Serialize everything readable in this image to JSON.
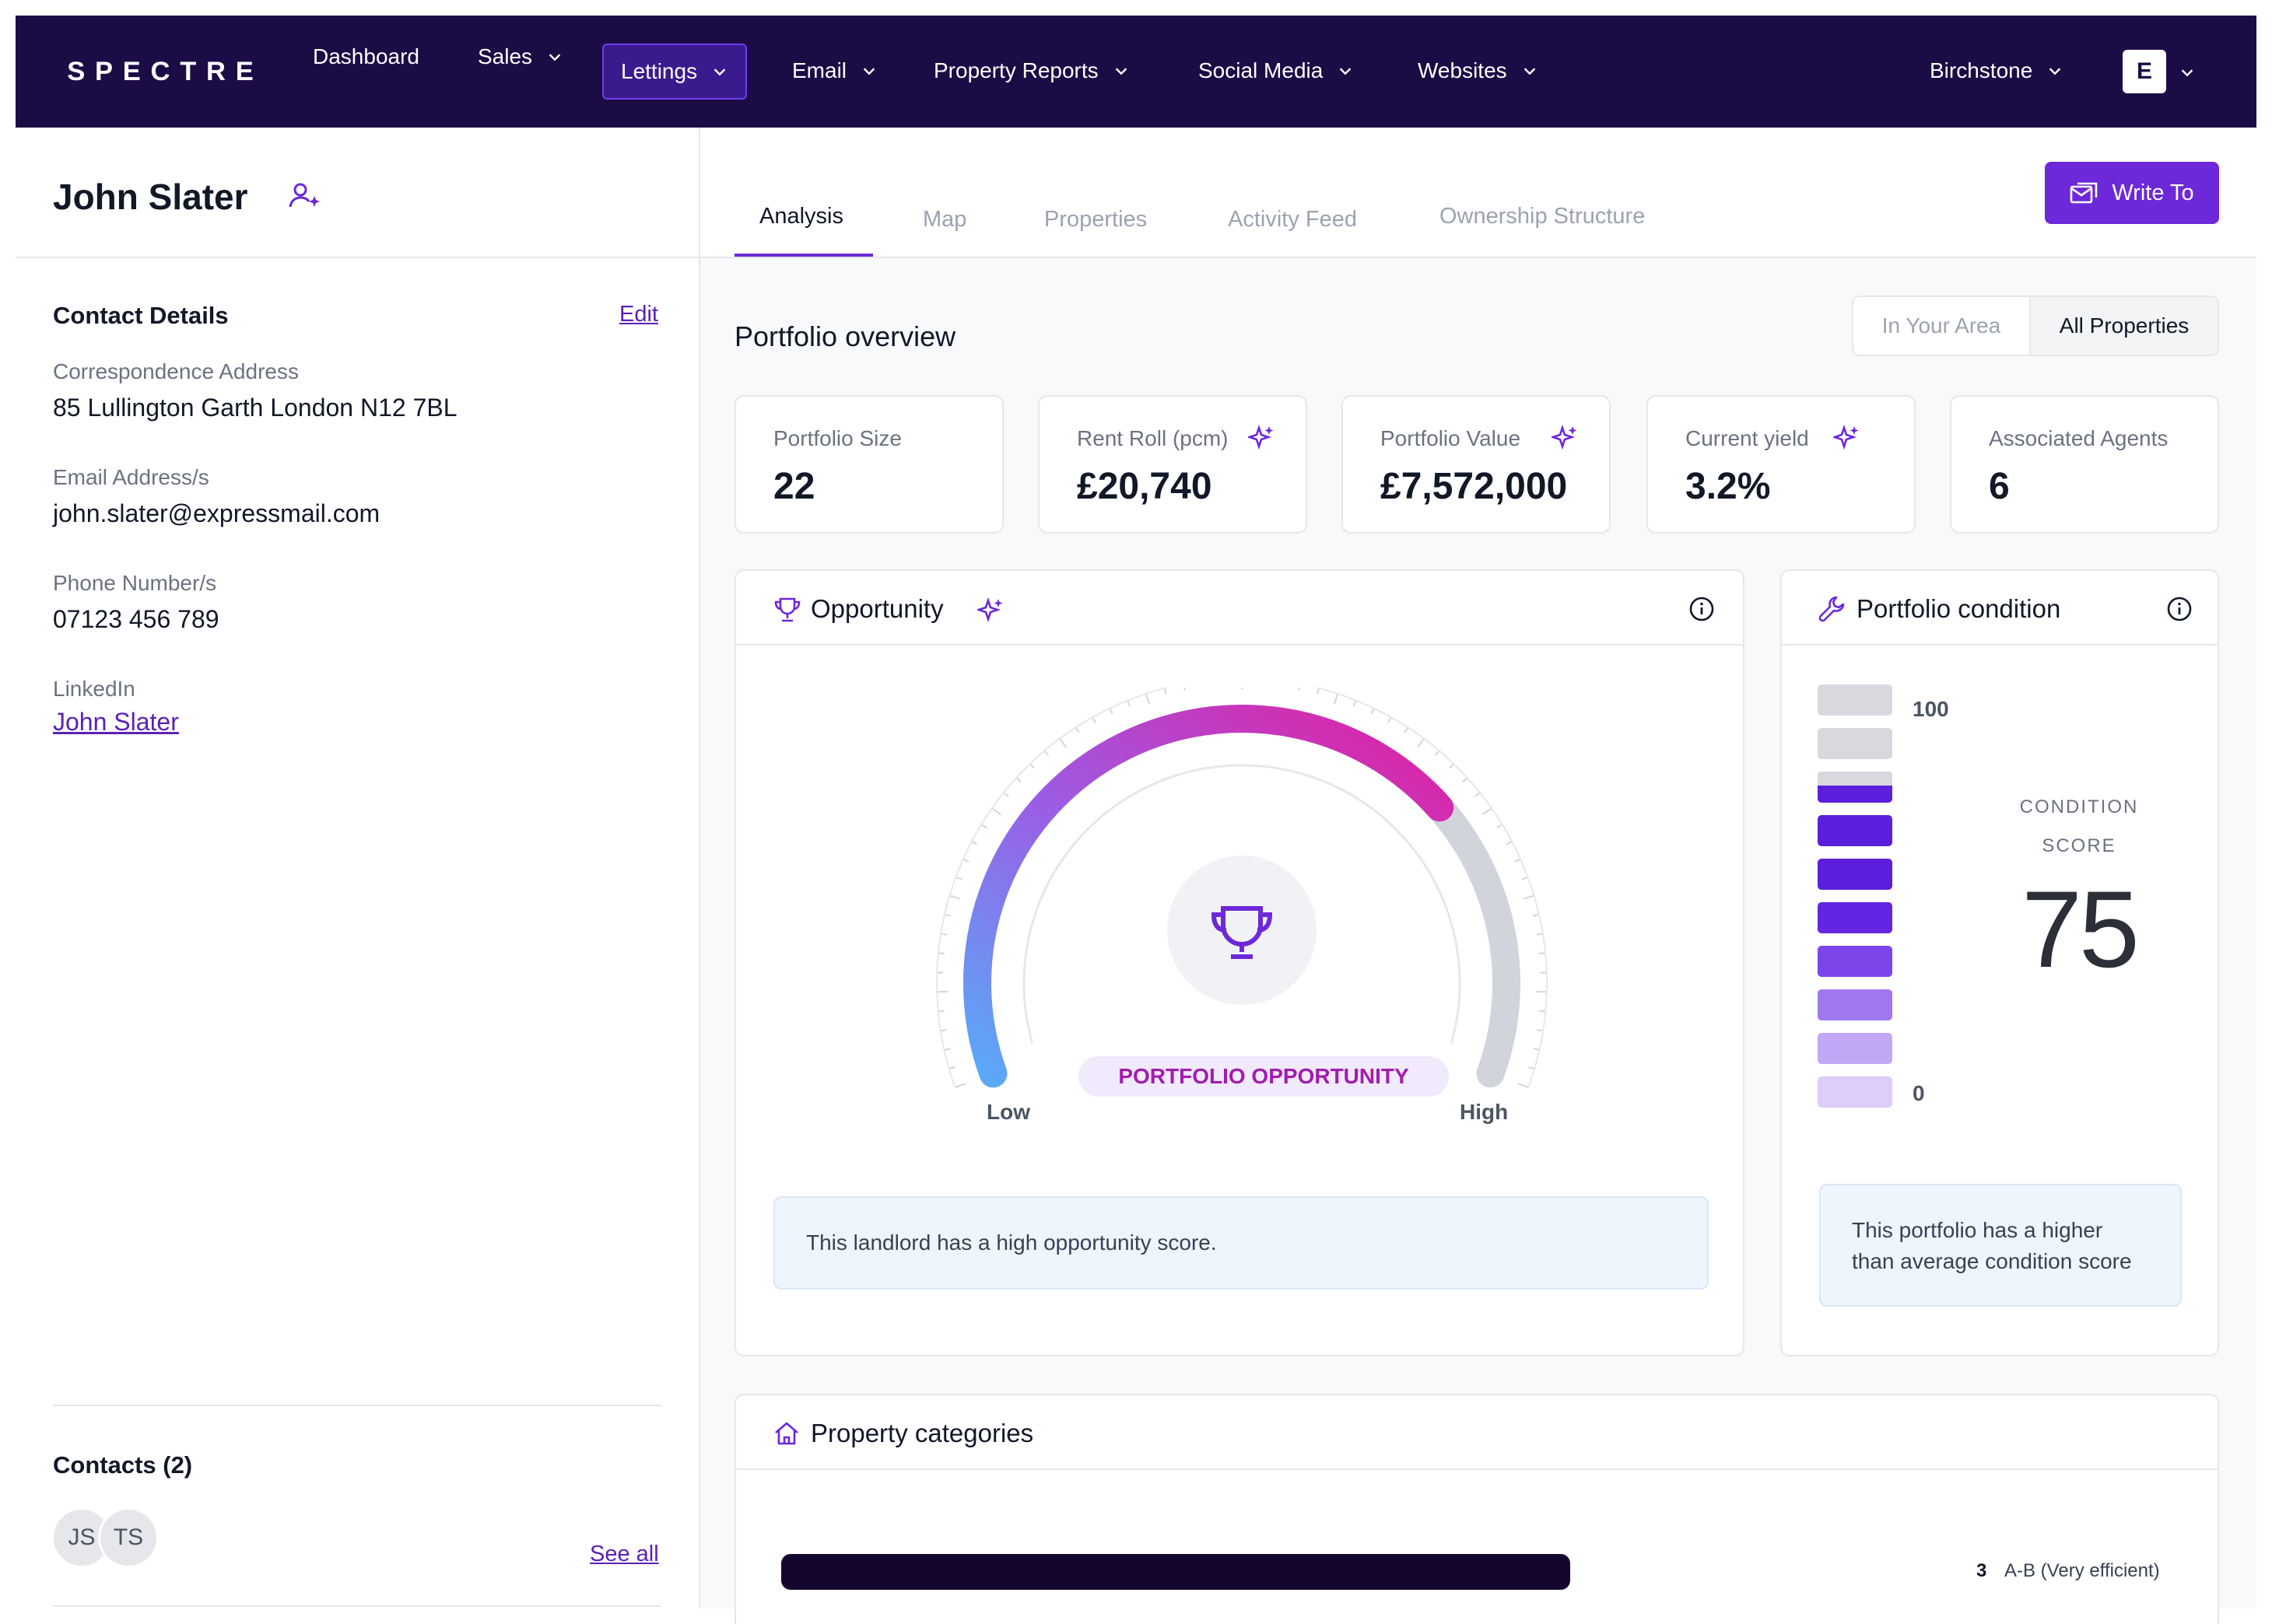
{
  "nav": {
    "logo": "SPECTRE",
    "items": [
      {
        "label": "Dashboard"
      },
      {
        "label": "Sales"
      },
      {
        "label": "Lettings"
      },
      {
        "label": "Email"
      },
      {
        "label": "Property Reports"
      },
      {
        "label": "Social Media"
      },
      {
        "label": "Websites"
      }
    ],
    "account": "Birchstone",
    "user_initial": "E"
  },
  "person": {
    "name": "John Slater"
  },
  "contact": {
    "heading": "Contact Details",
    "edit": "Edit",
    "address_label": "Correspondence Address",
    "address": "85 Lullington Garth London N12 7BL",
    "email_label": "Email Address/s",
    "email": "john.slater@expressmail.com",
    "phone_label": "Phone Number/s",
    "phone": "07123 456 789",
    "linkedin_label": "LinkedIn",
    "linkedin": "John Slater"
  },
  "contacts": {
    "heading": "Contacts (2)",
    "initials": [
      "JS",
      "TS"
    ],
    "see_all": "See all"
  },
  "tabs": [
    "Analysis",
    "Map",
    "Properties",
    "Activity Feed",
    "Ownership Structure"
  ],
  "write_to": "Write To",
  "overview": {
    "title": "Portfolio overview",
    "toggle": [
      "In Your Area",
      "All Properties"
    ]
  },
  "stats": [
    {
      "label": "Portfolio Size",
      "value": "22"
    },
    {
      "label": "Rent Roll (pcm)",
      "value": "£20,740"
    },
    {
      "label": "Portfolio Value",
      "value": "£7,572,000"
    },
    {
      "label": "Current yield",
      "value": "3.2%"
    },
    {
      "label": "Associated Agents",
      "value": "6"
    }
  ],
  "opportunity": {
    "title": "Opportunity",
    "badge": "PORTFOLIO OPPORTUNITY",
    "low": "Low",
    "high": "High",
    "level": 0.72,
    "note": "This landlord has a high opportunity score."
  },
  "condition": {
    "title": "Portfolio condition",
    "max": "100",
    "min": "0",
    "score_label_1": "CONDITION",
    "score_label_2": "SCORE",
    "score": "75",
    "note": "This portfolio has a higher than average condition score"
  },
  "categories": {
    "title": "Property categories",
    "row_count": "3",
    "row_label": "A-B (Very efficient)"
  },
  "colors": {
    "nav_bg": "#1c0c46",
    "accent": "#6d28d9",
    "gauge_pink": "#e21fa0",
    "gauge_blue": "#5aa9f8"
  }
}
